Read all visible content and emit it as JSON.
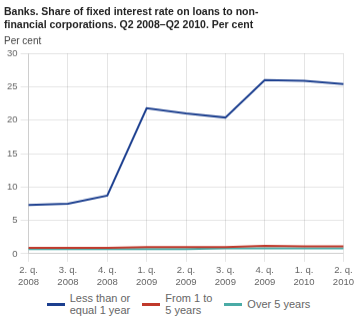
{
  "chart_data": {
    "type": "line",
    "title": "Banks. Share of fixed interest rate on loans to non-\nfinancial corporations. Q2 2008–Q2 2010. Per cent",
    "ylabel": "Per cent",
    "categories": [
      "2. q.\n2008",
      "3. q.\n2008",
      "4. q.\n2008",
      "1. q.\n2009",
      "2. q.\n2009",
      "3. q.\n2009",
      "4. q.\n2009",
      "1. q.\n2010",
      "2. q.\n2010"
    ],
    "series": [
      {
        "name": "Less than or\nequal 1 year",
        "color": "#1c3f8f",
        "values": [
          7.3,
          7.5,
          8.7,
          21.8,
          21.0,
          20.4,
          26.0,
          25.9,
          25.4
        ]
      },
      {
        "name": "From 1 to\n5 years",
        "color": "#c0392b",
        "values": [
          0.9,
          0.9,
          0.9,
          1.0,
          1.0,
          1.0,
          1.2,
          1.1,
          1.1
        ]
      },
      {
        "name": "Over 5 years",
        "color": "#4aaba6",
        "values": [
          0.7,
          0.7,
          0.7,
          0.7,
          0.7,
          0.8,
          0.8,
          0.8,
          0.8
        ]
      }
    ],
    "ylim": [
      0,
      30
    ],
    "yticks": [
      0,
      5,
      10,
      15,
      20,
      25,
      30
    ],
    "grid": true,
    "legend": "bottom"
  }
}
